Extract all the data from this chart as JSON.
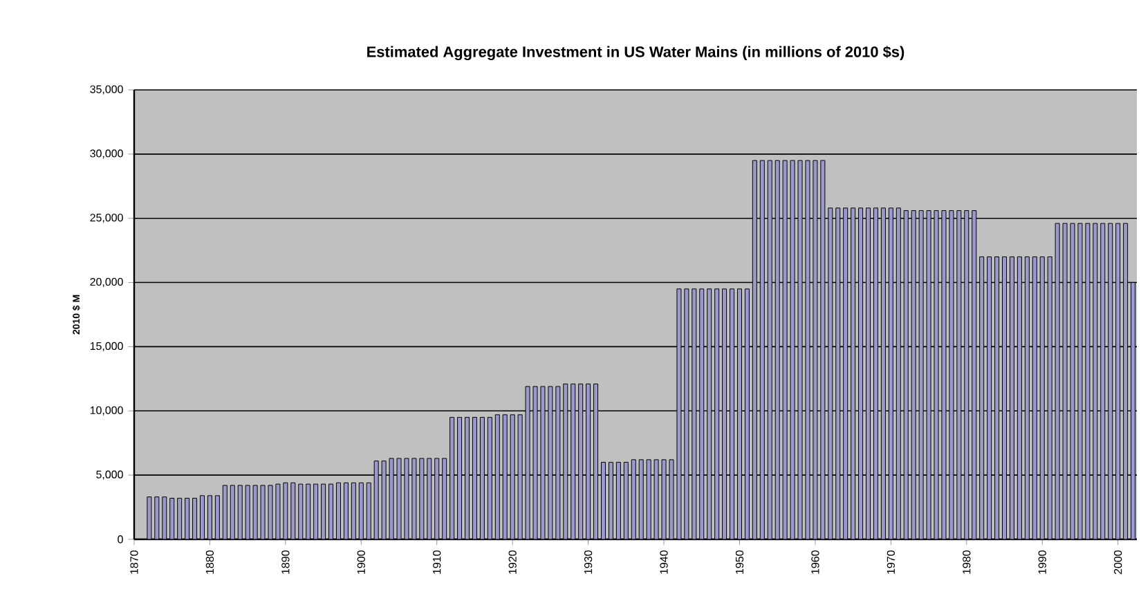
{
  "chart_data": {
    "type": "bar",
    "title": "Estimated Aggregate Investment in US Water Mains (in millions of 2010 $s)",
    "ylabel": "2010 $ M",
    "x": [
      1872,
      1873,
      1874,
      1875,
      1876,
      1877,
      1878,
      1879,
      1880,
      1881,
      1882,
      1883,
      1884,
      1885,
      1886,
      1887,
      1888,
      1889,
      1890,
      1891,
      1892,
      1893,
      1894,
      1895,
      1896,
      1897,
      1898,
      1899,
      1900,
      1901,
      1902,
      1903,
      1904,
      1905,
      1906,
      1907,
      1908,
      1909,
      1910,
      1911,
      1912,
      1913,
      1914,
      1915,
      1916,
      1917,
      1918,
      1919,
      1920,
      1921,
      1922,
      1923,
      1924,
      1925,
      1926,
      1927,
      1928,
      1929,
      1930,
      1931,
      1932,
      1933,
      1934,
      1935,
      1936,
      1937,
      1938,
      1939,
      1940,
      1941,
      1942,
      1943,
      1944,
      1945,
      1946,
      1947,
      1948,
      1949,
      1950,
      1951,
      1952,
      1953,
      1954,
      1955,
      1956,
      1957,
      1958,
      1959,
      1960,
      1961,
      1962,
      1963,
      1964,
      1965,
      1966,
      1967,
      1968,
      1969,
      1970,
      1971,
      1972,
      1973,
      1974,
      1975,
      1976,
      1977,
      1978,
      1979,
      1980,
      1981,
      1982,
      1983,
      1984,
      1985,
      1986,
      1987,
      1988,
      1989,
      1990,
      1991,
      1992,
      1993,
      1994,
      1995,
      1996,
      1997,
      1998,
      1999,
      2000,
      2001,
      2002
    ],
    "values": [
      3300,
      3300,
      3300,
      3200,
      3200,
      3200,
      3200,
      3400,
      3400,
      3400,
      4200,
      4200,
      4200,
      4200,
      4200,
      4200,
      4200,
      4300,
      4400,
      4400,
      4300,
      4300,
      4300,
      4300,
      4300,
      4400,
      4400,
      4400,
      4400,
      4400,
      6100,
      6100,
      6300,
      6300,
      6300,
      6300,
      6300,
      6300,
      6300,
      6300,
      9500,
      9500,
      9500,
      9500,
      9500,
      9500,
      9700,
      9700,
      9700,
      9700,
      11900,
      11900,
      11900,
      11900,
      11900,
      12100,
      12100,
      12100,
      12100,
      12100,
      6000,
      6000,
      6000,
      6000,
      6200,
      6200,
      6200,
      6200,
      6200,
      6200,
      19500,
      19500,
      19500,
      19500,
      19500,
      19500,
      19500,
      19500,
      19500,
      19500,
      29500,
      29500,
      29500,
      29500,
      29500,
      29500,
      29500,
      29500,
      29500,
      29500,
      25800,
      25800,
      25800,
      25800,
      25800,
      25800,
      25800,
      25800,
      25800,
      25800,
      25600,
      25600,
      25600,
      25600,
      25600,
      25600,
      25600,
      25600,
      25600,
      25600,
      22000,
      22000,
      22000,
      22000,
      22000,
      22000,
      22000,
      22000,
      22000,
      22000,
      24600,
      24600,
      24600,
      24600,
      24600,
      24600,
      24600,
      24600,
      24600,
      24600,
      20000
    ],
    "color": "#9999cc",
    "xlim": [
      1870,
      2002.5
    ],
    "xticks": [
      1870,
      1880,
      1890,
      1900,
      1910,
      1920,
      1930,
      1940,
      1950,
      1960,
      1970,
      1980,
      1990,
      2000
    ],
    "ylim": [
      0,
      35000
    ],
    "yticks": [
      0,
      {
        "value": 5000,
        "label": "5,000"
      },
      {
        "value": 10000,
        "label": "10,000"
      },
      {
        "value": 15000,
        "label": "15,000"
      },
      {
        "value": 20000,
        "label": "20,000"
      },
      {
        "value": 25000,
        "label": "25,000"
      },
      {
        "value": 30000,
        "label": "30,000"
      },
      {
        "value": 35000,
        "label": "35,000"
      }
    ],
    "grid": "y"
  }
}
